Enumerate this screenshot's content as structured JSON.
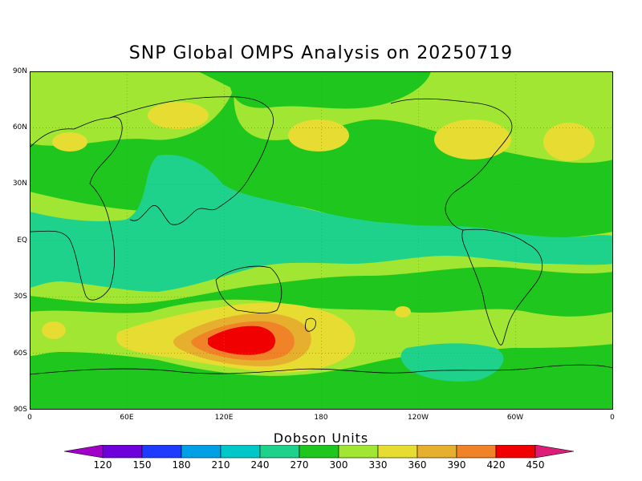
{
  "title": "SNP Global OMPS Analysis on 20250719",
  "map": {
    "y_ticks": [
      "90N",
      "60N",
      "30N",
      "EQ",
      "30S",
      "60S",
      "90S"
    ],
    "x_ticks": [
      "0",
      "60E",
      "120E",
      "180",
      "120W",
      "60W",
      "0"
    ],
    "colors": {
      "level_300": "#1ec61e",
      "level_330": "#a0e632",
      "level_360": "#e6dc32",
      "level_390": "#e6af2d",
      "level_420": "#f08228",
      "level_450": "#f00000",
      "level_270": "#1ed28c",
      "coast": "#000000"
    }
  },
  "colorbar": {
    "title": "Dobson Units",
    "labels": [
      "120",
      "150",
      "180",
      "210",
      "240",
      "270",
      "300",
      "330",
      "360",
      "390",
      "420",
      "450"
    ],
    "colors": [
      "#a000c8",
      "#6e00dc",
      "#1e3cff",
      "#00a0e6",
      "#00c8c8",
      "#1ed28c",
      "#1ec61e",
      "#a0e632",
      "#e6dc32",
      "#e6af2d",
      "#f08228",
      "#f00000",
      "#dc1e78"
    ]
  }
}
